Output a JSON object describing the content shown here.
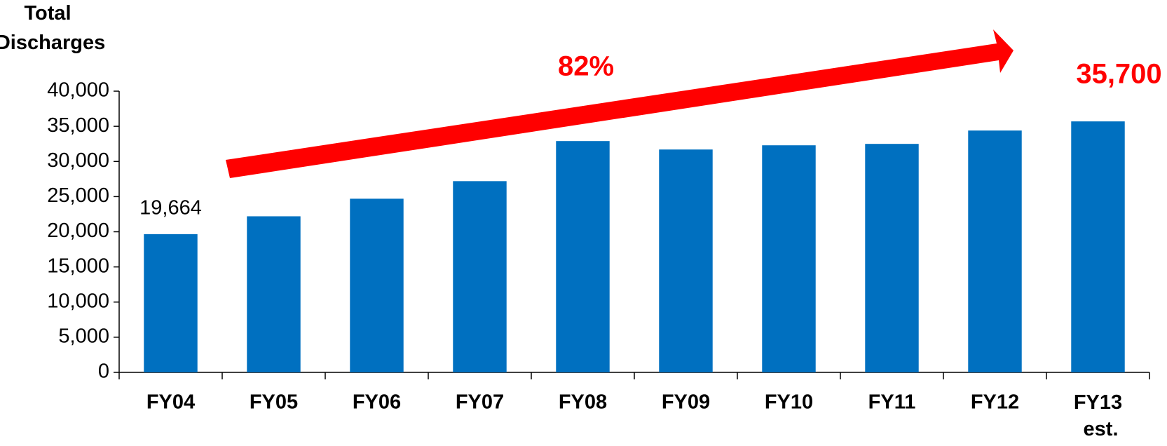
{
  "chart_data": {
    "type": "bar",
    "y_axis_label": "Total Discharges",
    "annotation": "82%",
    "categories": [
      "FY04",
      "FY05",
      "FY06",
      "FY07",
      "FY08",
      "FY09",
      "FY10",
      "FY11",
      "FY12",
      "FY13 est."
    ],
    "values": [
      19664,
      22200,
      24700,
      27200,
      32900,
      31700,
      32300,
      32500,
      34400,
      35700
    ],
    "value_labels": [
      "19,664",
      null,
      null,
      null,
      null,
      null,
      null,
      null,
      null,
      "35,700"
    ],
    "color": "#0070c0",
    "highlight_color": "#ff0000",
    "ylim": [
      0,
      40000
    ],
    "yticks": [
      0,
      {
        "value": 5000,
        "label": "5,000"
      },
      {
        "value": 10000,
        "label": "10,000"
      },
      {
        "value": 15000,
        "label": "15,000"
      },
      {
        "value": 20000,
        "label": "20,000"
      },
      {
        "value": 25000,
        "label": "25,000"
      },
      {
        "value": 30000,
        "label": "30,000"
      },
      {
        "value": 35000,
        "label": "35,000"
      },
      {
        "value": 40000,
        "label": "40,000"
      }
    ],
    "grid": false
  }
}
